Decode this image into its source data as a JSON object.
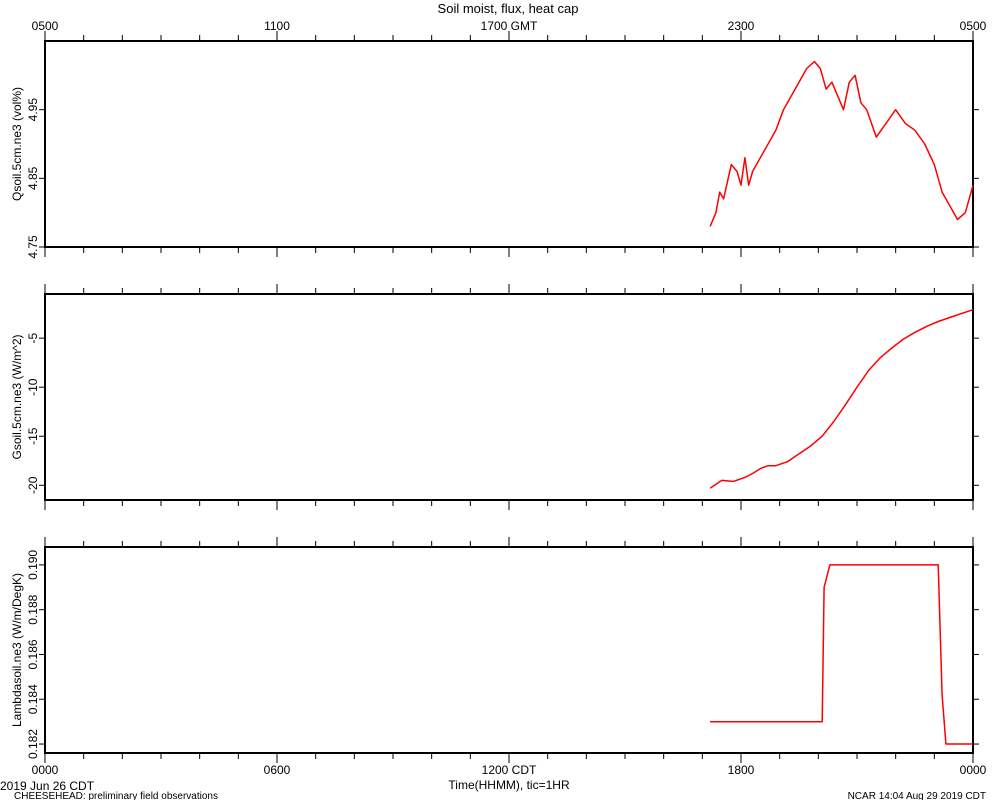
{
  "title": "Soil moist, flux, heat cap",
  "top_axis": {
    "label": "GMT",
    "ticks": [
      "0500",
      "1100",
      "1700 GMT",
      "2300",
      "0500"
    ]
  },
  "bottom_axis": {
    "label": "Time(HHMM), tic=1HR",
    "ticks": [
      "0000",
      "0600",
      "1200 CDT",
      "1800",
      "0000"
    ]
  },
  "footer": {
    "date": "2019 Jun 26 CDT",
    "project": "CHEESEHEAD: preliminary field observations",
    "stamp": "NCAR 14:04 Aug 29 2019 CDT"
  },
  "colors": {
    "series": "#ff0000",
    "axes": "#000000",
    "background": "#ffffff"
  },
  "chart_data": [
    {
      "type": "line",
      "ylabel": "Qsoil.5cm.ne3 (vol%)",
      "ylim": [
        4.75,
        5.05
      ],
      "yticks": [
        4.75,
        4.85,
        4.95
      ],
      "ytick_labels": [
        "4.75",
        "4.85",
        "4.95"
      ],
      "x_unit": "hours since 0000 CDT",
      "xlim": [
        0,
        24
      ],
      "series": [
        {
          "x": [
            17.2,
            17.35,
            17.45,
            17.55,
            17.75,
            17.9,
            18.0,
            18.1,
            18.2,
            18.3,
            18.4,
            18.5,
            18.7,
            18.9,
            19.1,
            19.3,
            19.5,
            19.7,
            19.9,
            20.05,
            20.2,
            20.35,
            20.5,
            20.65,
            20.8,
            20.95,
            21.1,
            21.25,
            21.5,
            21.75,
            22.0,
            22.25,
            22.5,
            22.75,
            23.0,
            23.2,
            23.4,
            23.6,
            23.8,
            24.0
          ],
          "y": [
            4.78,
            4.8,
            4.83,
            4.82,
            4.87,
            4.86,
            4.84,
            4.88,
            4.84,
            4.86,
            4.87,
            4.88,
            4.9,
            4.92,
            4.95,
            4.97,
            4.99,
            5.01,
            5.02,
            5.01,
            4.98,
            4.99,
            4.97,
            4.95,
            4.99,
            5.0,
            4.96,
            4.95,
            4.91,
            4.93,
            4.95,
            4.93,
            4.92,
            4.9,
            4.87,
            4.83,
            4.81,
            4.79,
            4.8,
            4.84
          ]
        }
      ]
    },
    {
      "type": "line",
      "ylabel": "Gsoil.5cm.ne3 (W/m^2)",
      "ylim": [
        -21.5,
        -0.5
      ],
      "yticks": [
        -20,
        -15,
        -10,
        -5
      ],
      "ytick_labels": [
        "-20",
        "-15",
        "-10",
        "-5"
      ],
      "x_unit": "hours since 0000 CDT",
      "xlim": [
        0,
        24
      ],
      "series": [
        {
          "x": [
            17.2,
            17.5,
            17.8,
            18.1,
            18.3,
            18.5,
            18.7,
            18.9,
            19.2,
            19.5,
            19.8,
            20.1,
            20.4,
            20.7,
            21.0,
            21.3,
            21.6,
            21.9,
            22.2,
            22.5,
            22.8,
            23.1,
            23.4,
            23.7,
            24.0
          ],
          "y": [
            -20.3,
            -19.5,
            -19.6,
            -19.2,
            -18.8,
            -18.3,
            -18.0,
            -18.0,
            -17.6,
            -16.8,
            -16.0,
            -15.0,
            -13.5,
            -11.8,
            -10.0,
            -8.3,
            -7.0,
            -6.0,
            -5.1,
            -4.4,
            -3.8,
            -3.3,
            -2.9,
            -2.5,
            -2.1
          ]
        }
      ]
    },
    {
      "type": "line",
      "ylabel": "Lambdasoil.ne3 (W/m/DegK)",
      "ylim": [
        0.1816,
        0.1908
      ],
      "yticks": [
        0.182,
        0.184,
        0.186,
        0.188,
        0.19
      ],
      "ytick_labels": [
        "0.182",
        "0.184",
        "0.186",
        "0.188",
        "0.190"
      ],
      "x_unit": "hours since 0000 CDT",
      "xlim": [
        0,
        24
      ],
      "series": [
        {
          "x": [
            17.2,
            20.1,
            20.15,
            20.3,
            23.1,
            23.2,
            23.3,
            24.0
          ],
          "y": [
            0.183,
            0.183,
            0.189,
            0.19,
            0.19,
            0.1842,
            0.182,
            0.182
          ]
        }
      ]
    }
  ]
}
